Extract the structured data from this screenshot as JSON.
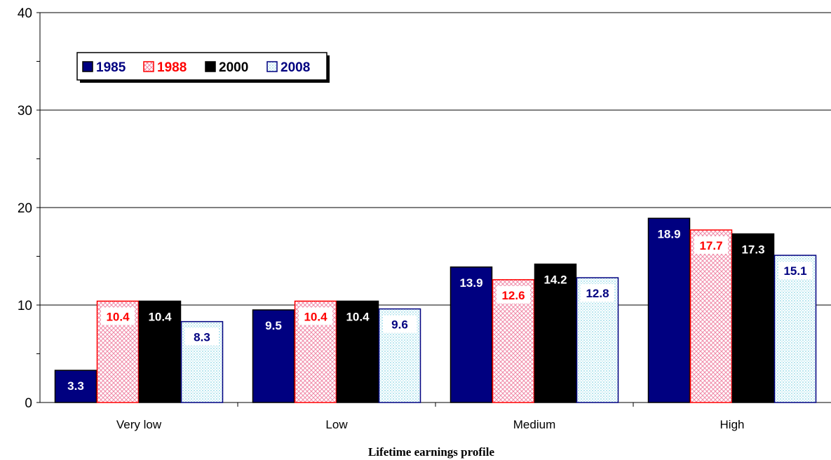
{
  "chart_data": {
    "type": "bar",
    "categories": [
      "Very low",
      "Low",
      "Medium",
      "High"
    ],
    "series": [
      {
        "name": "1985",
        "values": [
          3.3,
          9.5,
          13.9,
          18.9
        ],
        "fill": "#000080",
        "border": "#000000",
        "label_color": "#ffffff",
        "pattern": "solid"
      },
      {
        "name": "1988",
        "values": [
          10.4,
          10.4,
          12.6,
          17.7
        ],
        "fill": "#f2a0b4",
        "border": "#ff0000",
        "label_color": "#ff0000",
        "pattern": "crosshatch"
      },
      {
        "name": "2000",
        "values": [
          10.4,
          10.4,
          14.2,
          17.3
        ],
        "fill": "#000000",
        "border": "#000000",
        "label_color": "#ffffff",
        "pattern": "solid"
      },
      {
        "name": "2008",
        "values": [
          8.3,
          9.6,
          12.8,
          15.1
        ],
        "fill": "#bfe9f2",
        "border": "#000080",
        "label_color": "#000080",
        "pattern": "dots"
      }
    ],
    "title": "",
    "xlabel": "Lifetime earnings profile",
    "ylabel": "",
    "ylim": [
      0,
      40
    ],
    "yticks": [
      "0",
      "10",
      "20",
      "30",
      "40"
    ],
    "grid": true,
    "legend_position": "top-left"
  }
}
